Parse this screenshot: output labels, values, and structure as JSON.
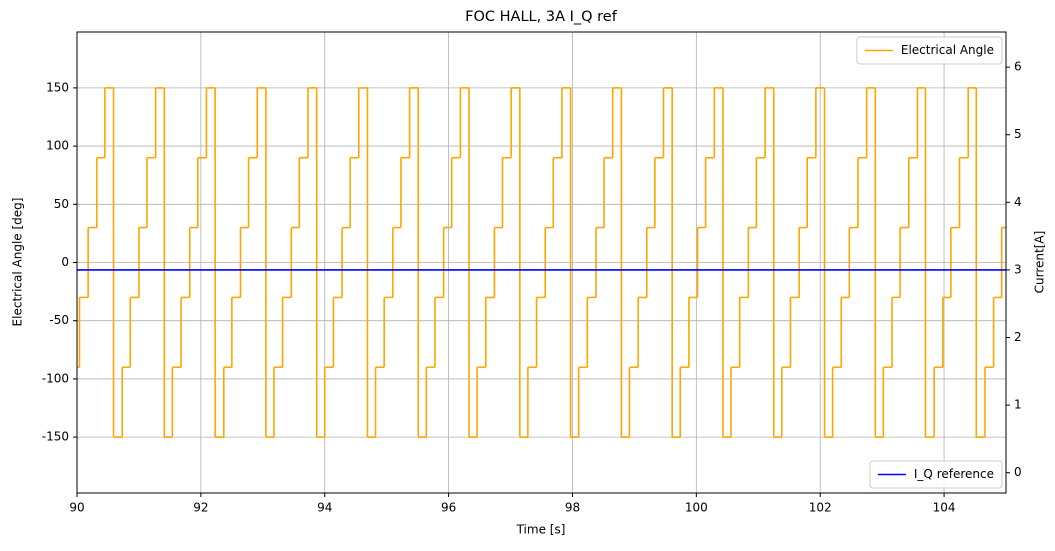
{
  "chart_data": {
    "type": "line",
    "title": "FOC HALL, 3A I_Q ref",
    "xlabel": "Time [s]",
    "ylabel": "Electrical Angle [deg]",
    "y2label": "Current[A]",
    "xlim": [
      90,
      105
    ],
    "xticks": [
      90,
      92,
      94,
      96,
      98,
      100,
      102,
      104
    ],
    "ylim": [
      -198,
      198
    ],
    "yticks": [
      -150,
      -100,
      -50,
      0,
      50,
      100,
      150
    ],
    "y2lim": [
      -0.3,
      6.52
    ],
    "y2ticks": [
      0,
      1,
      2,
      3,
      4,
      5,
      6
    ],
    "grid": true,
    "series": [
      {
        "name": "Electrical Angle",
        "color": "#ffa500",
        "step": "post",
        "legend": "upper right",
        "x": [
          90,
          90.04,
          90.18,
          90.32,
          90.45,
          90.59,
          90.73,
          90.86,
          91.0,
          91.13,
          91.27,
          91.41,
          91.54,
          91.68,
          91.82,
          91.95,
          92.09,
          92.23,
          92.37,
          92.5,
          92.64,
          92.77,
          92.91,
          93.05,
          93.18,
          93.32,
          93.46,
          93.59,
          93.73,
          93.87,
          94.0,
          94.14,
          94.28,
          94.41,
          94.55,
          94.69,
          94.82,
          94.96,
          95.1,
          95.23,
          95.37,
          95.51,
          95.64,
          95.78,
          95.92,
          96.05,
          96.19,
          96.33,
          96.46,
          96.6,
          96.74,
          96.87,
          97.01,
          97.15,
          97.28,
          97.42,
          97.56,
          97.69,
          97.83,
          97.97,
          98.1,
          98.24,
          98.38,
          98.51,
          98.65,
          98.79,
          98.92,
          99.06,
          99.2,
          99.33,
          99.47,
          99.61,
          99.74,
          99.88,
          100.02,
          100.15,
          100.29,
          100.43,
          100.56,
          100.7,
          100.84,
          100.97,
          101.11,
          101.25,
          101.38,
          101.52,
          101.66,
          101.79,
          101.93,
          102.07,
          102.2,
          102.34,
          102.47,
          102.61,
          102.75,
          102.89,
          103.02,
          103.16,
          103.29,
          103.43,
          103.57,
          103.7,
          103.84,
          103.98,
          104.11,
          104.25,
          104.39,
          104.52,
          104.66,
          104.8,
          104.93,
          105
        ],
        "values": [
          -90,
          -30,
          30,
          90,
          150,
          -150,
          -90,
          -30,
          30,
          90,
          150,
          -150,
          -90,
          -30,
          30,
          90,
          150,
          -150,
          -90,
          -30,
          30,
          90,
          150,
          -150,
          -90,
          -30,
          30,
          90,
          150,
          -150,
          -90,
          -30,
          30,
          90,
          150,
          -150,
          -90,
          -30,
          30,
          90,
          150,
          -150,
          -90,
          -30,
          30,
          90,
          150,
          -150,
          -90,
          -30,
          30,
          90,
          150,
          -150,
          -90,
          -30,
          30,
          90,
          150,
          -150,
          -90,
          -30,
          30,
          90,
          150,
          -150,
          -90,
          -30,
          30,
          90,
          150,
          -150,
          -90,
          -30,
          30,
          90,
          150,
          -150,
          -90,
          -30,
          30,
          90,
          150,
          -150,
          -90,
          -30,
          30,
          90,
          150,
          -150,
          -90,
          -30,
          30,
          90,
          150,
          -150,
          -90,
          -30,
          30,
          90,
          150,
          -150,
          -90,
          -30,
          30,
          90,
          150,
          -150,
          -90,
          -30,
          30,
          30
        ]
      },
      {
        "name": "I_Q reference",
        "color": "#0000ff",
        "axis": "y2",
        "legend": "lower right",
        "x": [
          90,
          105
        ],
        "values": [
          3,
          3
        ]
      }
    ]
  }
}
